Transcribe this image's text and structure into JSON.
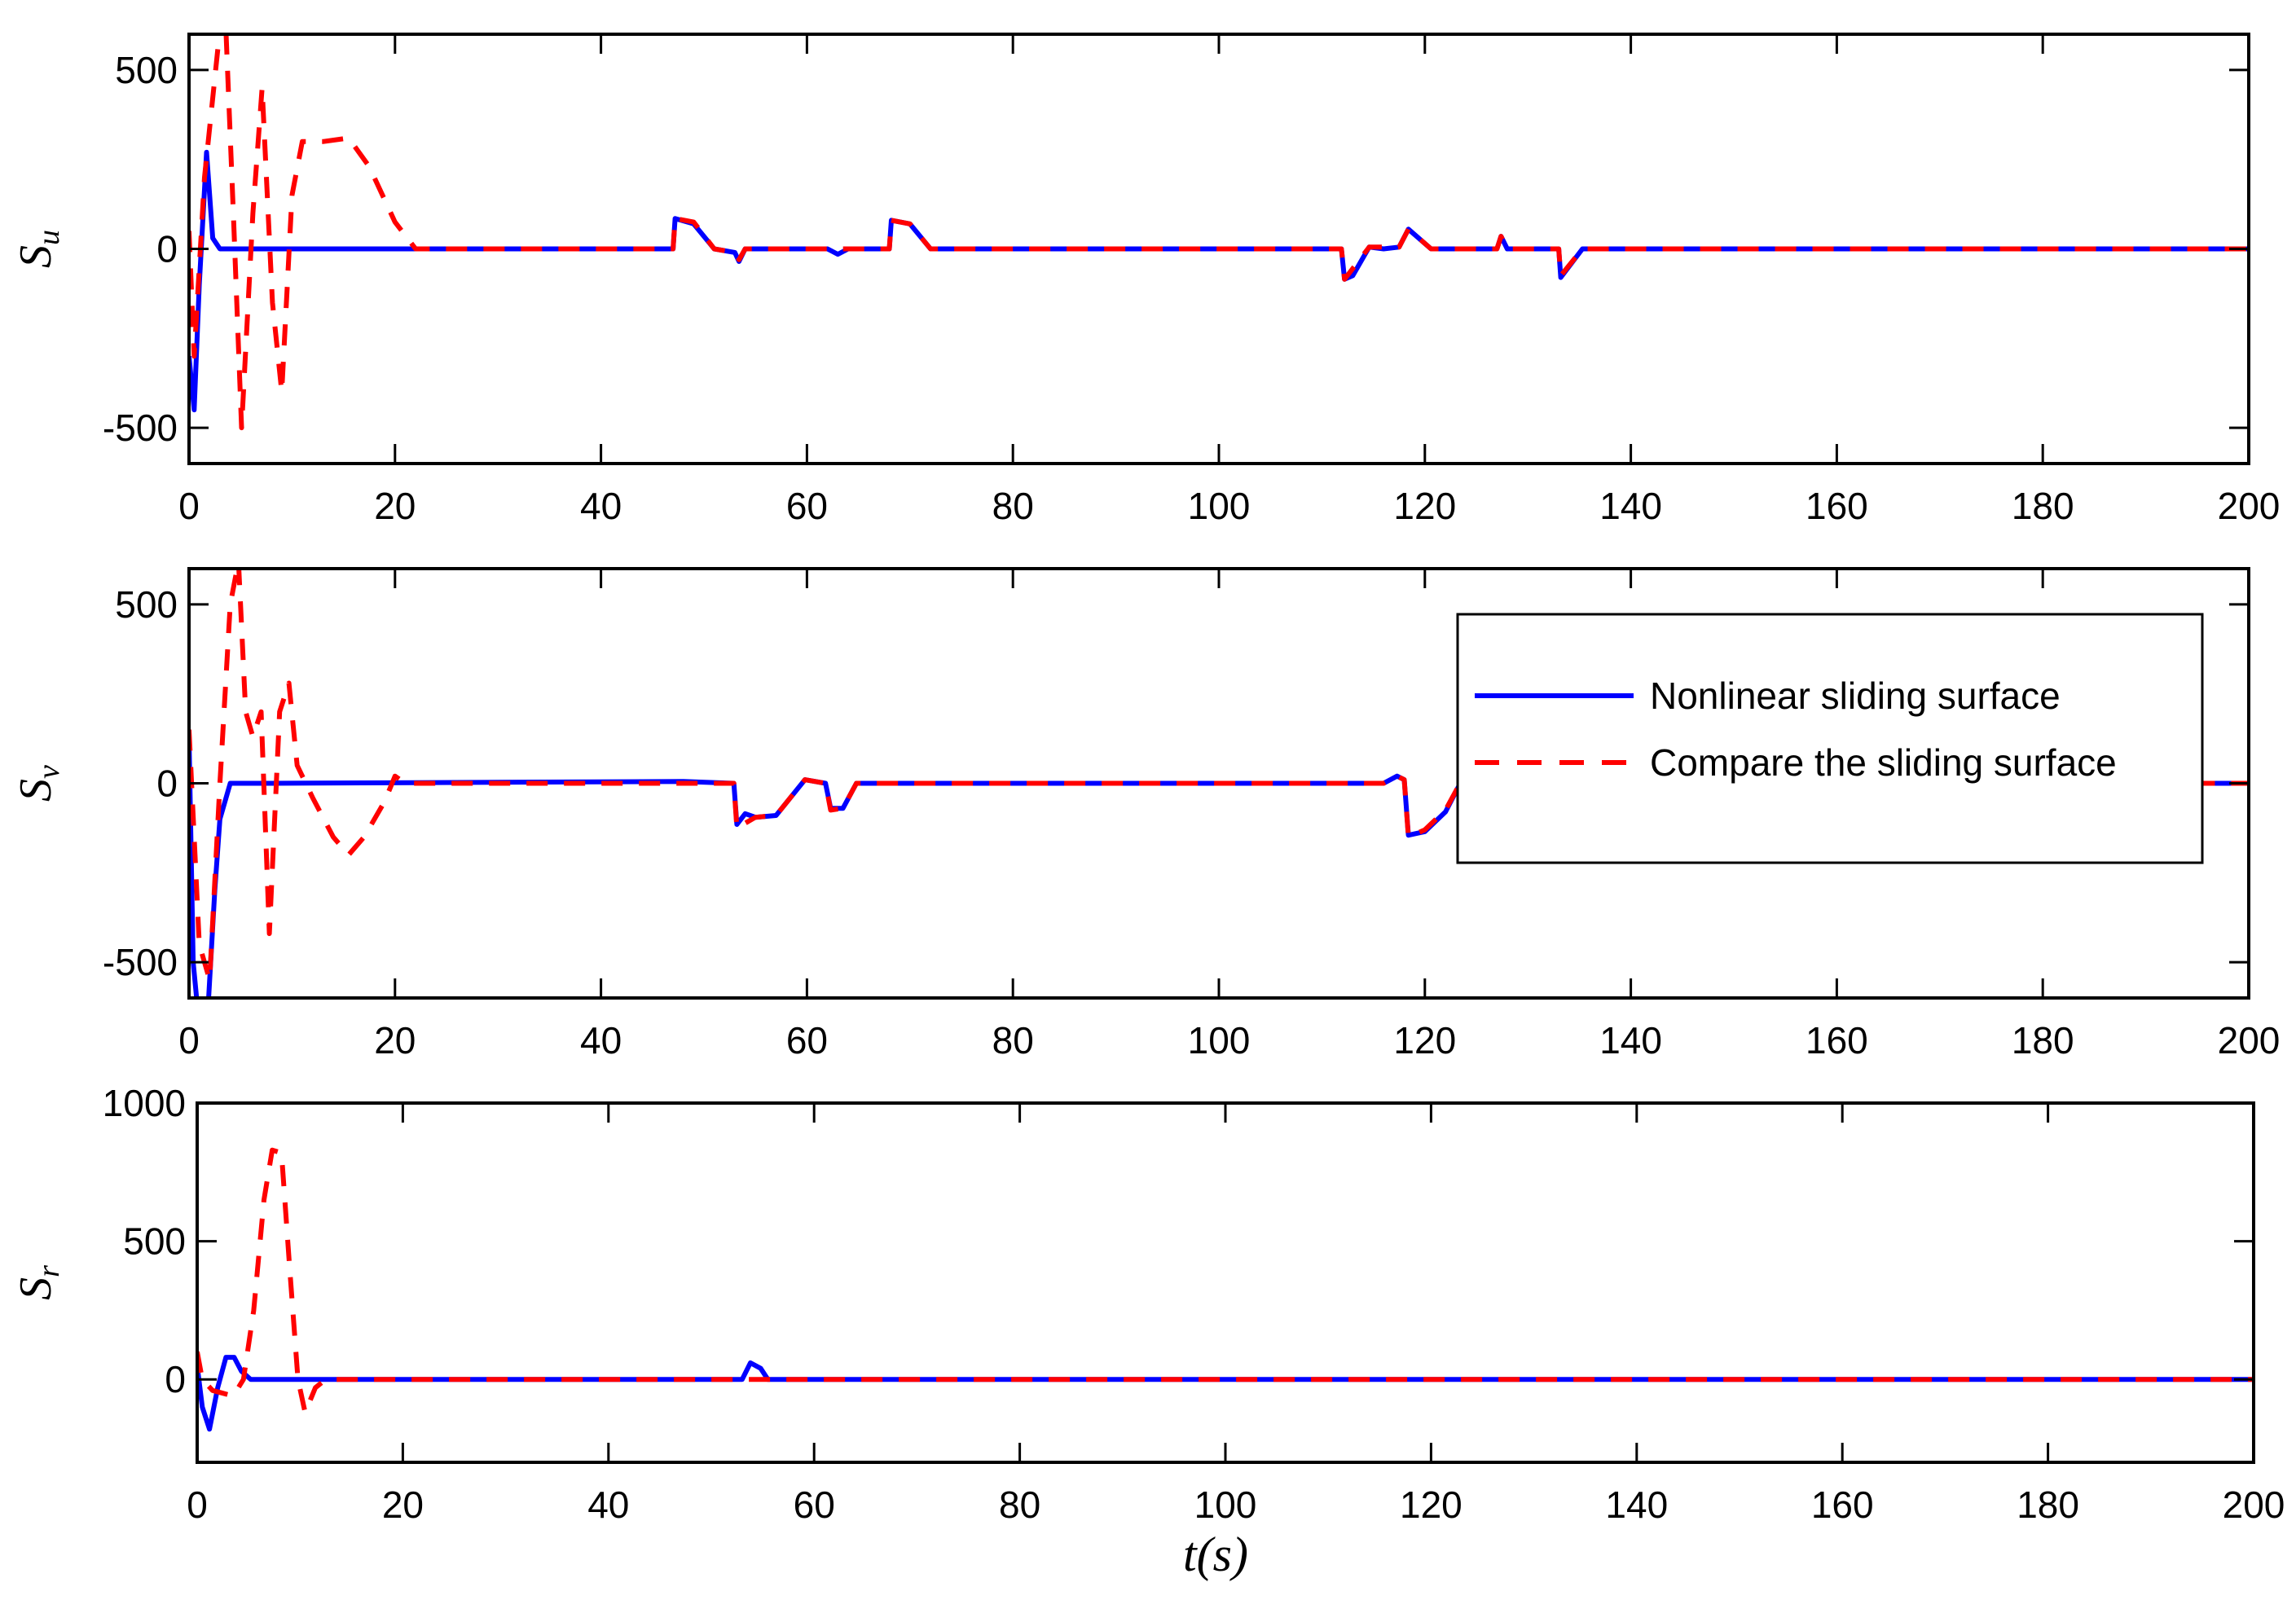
{
  "figure": {
    "xlabel": "t(s)",
    "colors": {
      "nonlinear": "#0000ff",
      "compare": "#ff0000",
      "axes": "#000000",
      "background": "#ffffff"
    }
  },
  "legend": {
    "entries": [
      {
        "label": "Nonlinear sliding surface",
        "style": "solid",
        "color": "#0000ff"
      },
      {
        "label": "Compare the sliding surface",
        "style": "dashed",
        "color": "#ff0000"
      }
    ]
  },
  "chart_data": [
    {
      "type": "line",
      "title": "",
      "ylabel": "S_u",
      "ylabel_main": "S",
      "ylabel_sub": "u",
      "xlabel": "",
      "xlim": [
        0,
        200
      ],
      "ylim": [
        -600,
        600
      ],
      "xticks": [
        0,
        20,
        40,
        60,
        80,
        100,
        120,
        140,
        160,
        180,
        200
      ],
      "yticks": [
        -500,
        0,
        500
      ],
      "grid": false,
      "series": [
        {
          "name": "Nonlinear sliding surface",
          "style": "solid",
          "color": "#0000ff",
          "x": [
            0,
            0.5,
            1.0,
            1.7,
            2.3,
            3,
            47,
            47.2,
            49,
            51,
            53,
            53.4,
            54,
            62,
            63,
            64,
            68,
            68.2,
            70,
            72,
            111.9,
            112.2,
            113,
            114.6,
            116,
            117.5,
            118.4,
            120.6,
            127,
            127.4,
            128,
            133,
            133.2,
            135.3,
            200
          ],
          "y": [
            -300,
            -450,
            -100,
            270,
            30,
            0,
            0,
            85,
            70,
            0,
            -10,
            -35,
            0,
            0,
            -15,
            0,
            0,
            80,
            70,
            0,
            0,
            -85,
            -75,
            5,
            0,
            5,
            55,
            0,
            0,
            35,
            0,
            0,
            -80,
            0,
            0
          ]
        },
        {
          "name": "Compare the sliding surface",
          "style": "dashed",
          "color": "#ff0000",
          "x": [
            0,
            0.5,
            1.5,
            2.8,
            3.6,
            4.3,
            5.1,
            6.2,
            7.1,
            8.1,
            9.0,
            10.0,
            11.0,
            13,
            15.5,
            17.5,
            20,
            22,
            47,
            47.2,
            49,
            51,
            53,
            53.4,
            54,
            68,
            68.2,
            70,
            72,
            111.9,
            112.2,
            114.6,
            117.5,
            118.4,
            120.6,
            127,
            127.4,
            128,
            133,
            133.2,
            135.3,
            200
          ],
          "y": [
            50,
            -300,
            200,
            560,
            600,
            100,
            -500,
            100,
            450,
            -150,
            -400,
            150,
            300,
            300,
            310,
            230,
            75,
            0,
            0,
            85,
            75,
            0,
            -10,
            -30,
            0,
            0,
            80,
            70,
            0,
            0,
            -85,
            5,
            5,
            55,
            0,
            0,
            35,
            0,
            0,
            -75,
            0,
            0
          ]
        }
      ]
    },
    {
      "type": "line",
      "title": "",
      "ylabel": "S_v",
      "ylabel_main": "S",
      "ylabel_sub": "v",
      "xlabel": "",
      "xlim": [
        0,
        200
      ],
      "ylim": [
        -600,
        600
      ],
      "xticks": [
        0,
        20,
        40,
        60,
        80,
        100,
        120,
        140,
        160,
        180,
        200
      ],
      "yticks": [
        -500,
        0,
        500
      ],
      "grid": false,
      "series": [
        {
          "name": "Nonlinear sliding surface",
          "style": "solid",
          "color": "#0000ff",
          "x": [
            0,
            0.4,
            0.9,
            1.8,
            2.5,
            3.0,
            4.0,
            8,
            48,
            52.9,
            53.2,
            54,
            55,
            57,
            59.8,
            61.8,
            62.3,
            63.5,
            64.8,
            116,
            117.3,
            118,
            118.4,
            120,
            122,
            123.7,
            126.5,
            127,
            127.5,
            129.8,
            200
          ],
          "y": [
            130,
            -500,
            -650,
            -650,
            -300,
            -100,
            0,
            0,
            5,
            0,
            -115,
            -85,
            -95,
            -90,
            10,
            0,
            -70,
            -70,
            0,
            0,
            20,
            10,
            -145,
            -135,
            -80,
            15,
            0,
            -50,
            -55,
            0,
            0
          ]
        },
        {
          "name": "Compare the sliding surface",
          "style": "dashed",
          "color": "#ff0000",
          "x": [
            0,
            1.0,
            2.0,
            3.0,
            4.0,
            4.8,
            5.5,
            6.2,
            7.0,
            7.8,
            8.8,
            9.7,
            10.5,
            12,
            14,
            15.5,
            17,
            19,
            20,
            21,
            52.9,
            53.2,
            55,
            57,
            59.8,
            61.8,
            62.3,
            63.5,
            64.8,
            116,
            117.3,
            118,
            118.4,
            120,
            122,
            123.7,
            126.5,
            127,
            127.5,
            129.8,
            200
          ],
          "y": [
            150,
            -450,
            -550,
            0,
            500,
            620,
            200,
            130,
            200,
            -420,
            200,
            280,
            50,
            -40,
            -150,
            -200,
            -150,
            -50,
            20,
            0,
            0,
            -125,
            -95,
            -90,
            10,
            0,
            -75,
            -70,
            0,
            0,
            20,
            10,
            -150,
            -130,
            -75,
            15,
            0,
            -55,
            -55,
            0,
            0
          ]
        }
      ]
    },
    {
      "type": "line",
      "title": "",
      "ylabel": "S_r",
      "ylabel_main": "S",
      "ylabel_sub": "r",
      "xlabel": "t(s)",
      "xlim": [
        0,
        200
      ],
      "ylim": [
        -300,
        1000
      ],
      "xticks": [
        0,
        20,
        40,
        60,
        80,
        100,
        120,
        140,
        160,
        180,
        200
      ],
      "yticks": [
        0,
        500,
        1000
      ],
      "grid": false,
      "series": [
        {
          "name": "Nonlinear sliding surface",
          "style": "solid",
          "color": "#0000ff",
          "x": [
            0,
            0.5,
            1.2,
            2.0,
            2.8,
            3.6,
            4.3,
            5.2,
            53,
            53.8,
            54.8,
            55.5,
            200
          ],
          "y": [
            50,
            -100,
            -180,
            -30,
            80,
            80,
            30,
            0,
            0,
            60,
            40,
            0,
            0
          ]
        },
        {
          "name": "Compare the sliding surface",
          "style": "dashed",
          "color": "#ff0000",
          "x": [
            0,
            0.5,
            1.5,
            2.5,
            3.5,
            4.5,
            5.5,
            6.5,
            7.3,
            8.2,
            9.0,
            9.8,
            10.5,
            11.5,
            12.5,
            200
          ],
          "y": [
            100,
            0,
            -40,
            -50,
            -60,
            0,
            250,
            650,
            830,
            820,
            400,
            0,
            -120,
            -30,
            0,
            0
          ]
        }
      ]
    }
  ]
}
